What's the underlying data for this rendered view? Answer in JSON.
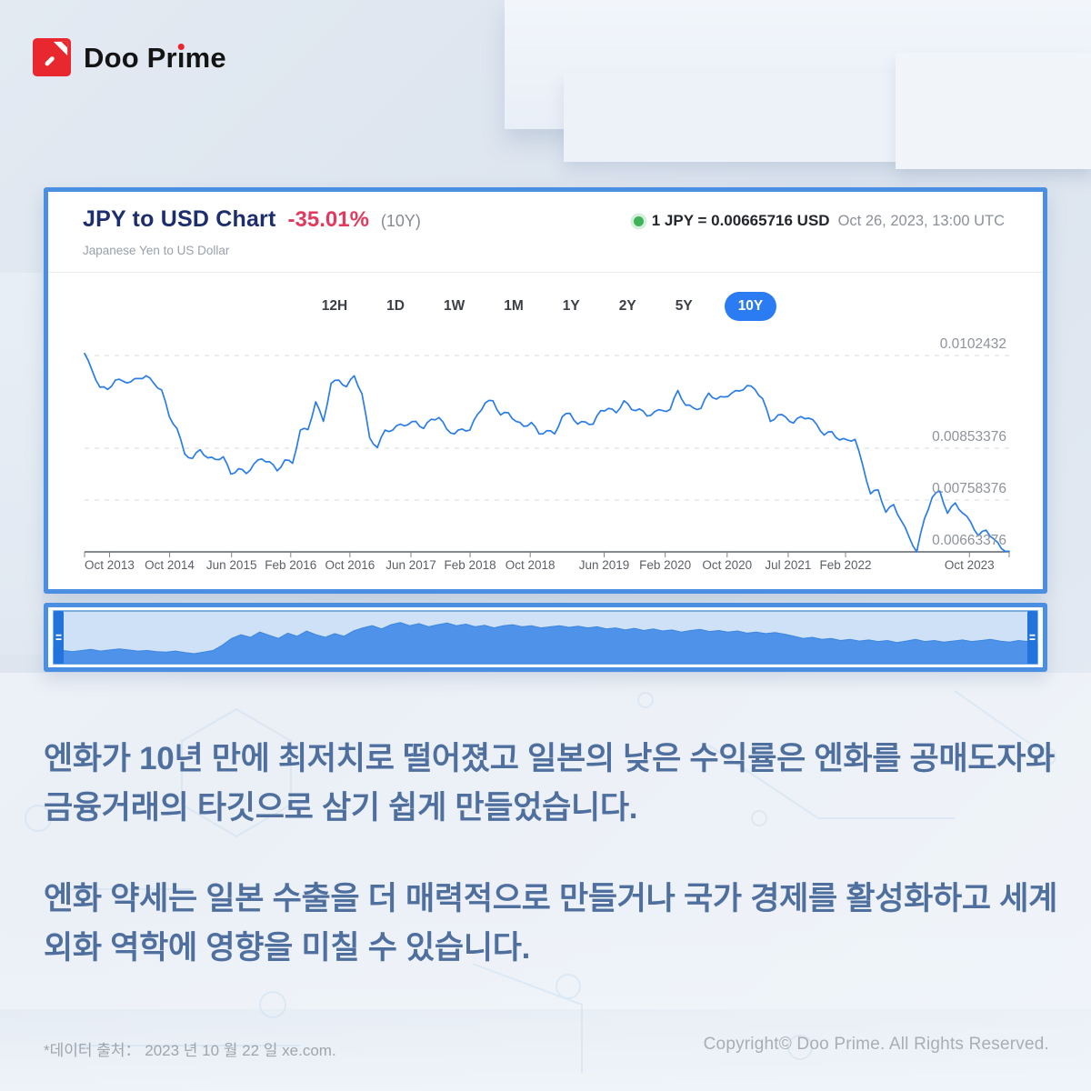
{
  "brand": {
    "name": "Doo Prime",
    "part1": "Doo Pr",
    "part2": "ı",
    "part3": "me"
  },
  "chart_card": {
    "title": "JPY to USD Chart",
    "change": "-35.01%",
    "change_period": "(10Y)",
    "subtitle": "Japanese Yen to US Dollar",
    "quote_rate": "1 JPY = 0.00665716 USD",
    "quote_time": "Oct 26, 2023, 13:00 UTC"
  },
  "icons": {
    "logo_mark": "doo-prime-red-square-logo",
    "status_dot": "green-live-dot",
    "navigator_handles": "blue-drag-handle-with-equals-glyph"
  },
  "chart_data": {
    "type": "line",
    "title": "JPY to USD Chart",
    "subtitle": "Japanese Yen to US Dollar",
    "pair": "JPY/USD",
    "change_pct_10y": "-35.01%",
    "ranges": [
      "12H",
      "1D",
      "1W",
      "1M",
      "1Y",
      "2Y",
      "5Y",
      "10Y"
    ],
    "active_range": "10Y",
    "x_start": "Oct 2013",
    "x_end": "Oct 2023",
    "ylim": [
      0.00646,
      0.01056
    ],
    "grid": "dashed-horizontal",
    "legend": "none",
    "y_axis": {
      "labels": [
        "0.0102432",
        "0.00853376",
        "0.00758376",
        "0.00663376"
      ],
      "values": [
        0.0102432,
        0.00853376,
        0.00758376,
        0.00663376
      ]
    },
    "x_ticks": [
      {
        "label": "Oct 2013",
        "f": 0.027
      },
      {
        "label": "Oct 2014",
        "f": 0.092
      },
      {
        "label": "Jun 2015",
        "f": 0.159
      },
      {
        "label": "Feb 2016",
        "f": 0.223
      },
      {
        "label": "Oct 2016",
        "f": 0.287
      },
      {
        "label": "Jun 2017",
        "f": 0.353
      },
      {
        "label": "Feb 2018",
        "f": 0.417
      },
      {
        "label": "Oct 2018",
        "f": 0.482
      },
      {
        "label": "Jun 2019",
        "f": 0.562
      },
      {
        "label": "Feb 2020",
        "f": 0.628
      },
      {
        "label": "Oct 2020",
        "f": 0.695
      },
      {
        "label": "Jul 2021",
        "f": 0.761
      },
      {
        "label": "Feb 2022",
        "f": 0.823
      },
      {
        "label": "Oct 2023",
        "f": 0.957
      }
    ],
    "series": [
      {
        "name": "JPY to USD",
        "unit": "USD per 1 JPY",
        "interval": "monthly Oct 2013 - Oct 2023",
        "values": [
          0.01028,
          0.00996,
          0.00966,
          0.00962,
          0.00979,
          0.00977,
          0.00976,
          0.00982,
          0.00987,
          0.00973,
          0.00961,
          0.00912,
          0.0089,
          0.00843,
          0.00835,
          0.00851,
          0.00836,
          0.00833,
          0.00838,
          0.00806,
          0.00816,
          0.00807,
          0.00825,
          0.00834,
          0.00829,
          0.00812,
          0.00832,
          0.00826,
          0.00887,
          0.00888,
          0.00939,
          0.00903,
          0.00973,
          0.00979,
          0.00967,
          0.00987,
          0.00954,
          0.00873,
          0.00855,
          0.00887,
          0.00887,
          0.00898,
          0.00897,
          0.00903,
          0.0089,
          0.00907,
          0.0091,
          0.00889,
          0.0088,
          0.00889,
          0.00887,
          0.00916,
          0.00937,
          0.00941,
          0.00915,
          0.00919,
          0.00903,
          0.00894,
          0.00901,
          0.0088,
          0.00886,
          0.0088,
          0.00912,
          0.00918,
          0.00898,
          0.00902,
          0.00898,
          0.00923,
          0.00927,
          0.00919,
          0.00941,
          0.00925,
          0.00926,
          0.00913,
          0.00921,
          0.00923,
          0.00925,
          0.0096,
          0.00933,
          0.00928,
          0.00927,
          0.00955,
          0.00944,
          0.00948,
          0.00955,
          0.00959,
          0.00969,
          0.00962,
          0.00945,
          0.00903,
          0.00915,
          0.00911,
          0.009,
          0.00912,
          0.00909,
          0.00898,
          0.00878,
          0.00884,
          0.00869,
          0.00869,
          0.0087,
          0.00822,
          0.0077,
          0.00777,
          0.00736,
          0.0075,
          0.0072,
          0.00691,
          0.00663,
          0.00724,
          0.00763,
          0.00775,
          0.00734,
          0.00753,
          0.00734,
          0.00718,
          0.00693,
          0.00703,
          0.00687,
          0.00669,
          0.00664
        ]
      }
    ],
    "navigator": {
      "description": "range selector area chart, full range selected, handles at both ends",
      "values": [
        0.28,
        0.25,
        0.23,
        0.25,
        0.27,
        0.24,
        0.26,
        0.28,
        0.26,
        0.24,
        0.25,
        0.23,
        0.22,
        0.24,
        0.21,
        0.19,
        0.22,
        0.25,
        0.35,
        0.48,
        0.55,
        0.5,
        0.6,
        0.54,
        0.48,
        0.58,
        0.52,
        0.62,
        0.55,
        0.5,
        0.57,
        0.52,
        0.62,
        0.68,
        0.72,
        0.66,
        0.74,
        0.78,
        0.72,
        0.76,
        0.7,
        0.74,
        0.77,
        0.72,
        0.75,
        0.7,
        0.73,
        0.68,
        0.72,
        0.74,
        0.7,
        0.72,
        0.68,
        0.7,
        0.72,
        0.69,
        0.71,
        0.68,
        0.7,
        0.66,
        0.68,
        0.64,
        0.67,
        0.63,
        0.66,
        0.62,
        0.64,
        0.6,
        0.63,
        0.65,
        0.61,
        0.63,
        0.6,
        0.62,
        0.58,
        0.6,
        0.57,
        0.59,
        0.56,
        0.52,
        0.48,
        0.5,
        0.46,
        0.48,
        0.44,
        0.46,
        0.43,
        0.45,
        0.42,
        0.44,
        0.4,
        0.43,
        0.46,
        0.42,
        0.44,
        0.41,
        0.43,
        0.45,
        0.42,
        0.44,
        0.46,
        0.43,
        0.41,
        0.44,
        0.42,
        0.4
      ]
    }
  },
  "body_text": {
    "para1": "엔화가 10년 만에 최저치로 떨어졌고 일본의 낮은 수익률은 엔화를 공매도자와 금융거래의 타깃으로 삼기 쉽게 만들었습니다.",
    "para2": "엔화 약세는 일본 수출을 더 매력적으로 만들거나 국가 경제를 활성화하고 세계 외화 역학에 영향을 미칠 수 있습니다."
  },
  "footer": {
    "source": "*데이터 출처： 2023 년 10 월 22 일 xe.com.",
    "copyright": "Copyright© Doo Prime. All Rights Reserved."
  },
  "colors": {
    "card_border": "#4a8fe2",
    "price_line": "#2a7de8",
    "active_pill": "#2b7bf3",
    "title_navy": "#1d2e6e",
    "change_red": "#e23a5f",
    "green_dot": "#3fb35a",
    "nav_area": "#4e93e9",
    "nav_track": "#cfe1f6",
    "nav_handle": "#2273dc",
    "body_text_blue": "#4f6f9f",
    "logo_red": "#e8282e"
  }
}
